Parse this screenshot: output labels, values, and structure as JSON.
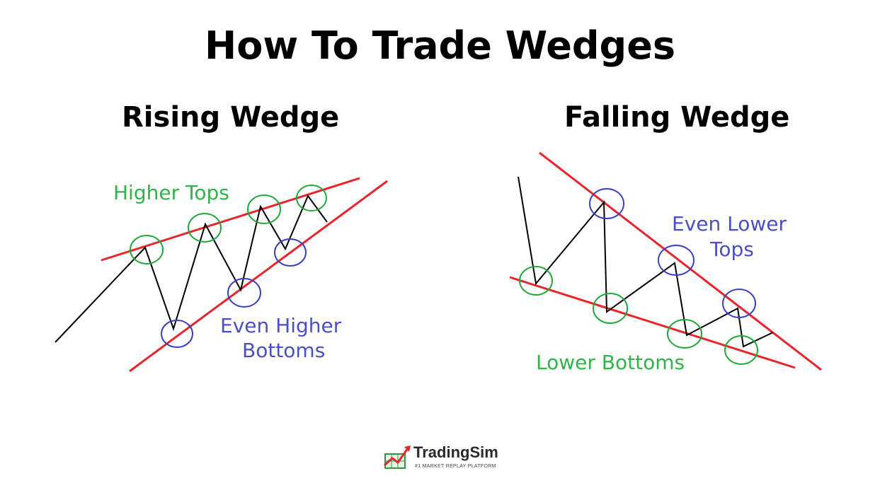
{
  "title": "How To Trade Wedges",
  "rising": {
    "title": "Rising Wedge",
    "label_tops": "Higher Tops",
    "label_bottoms_line1": "Even Higher",
    "label_bottoms_line2": "Bottoms"
  },
  "falling": {
    "title": "Falling Wedge",
    "label_tops_line1": "Even Lower",
    "label_tops_line2": "Tops",
    "label_bottoms": "Lower Bottoms"
  },
  "logo": {
    "name": "TradingSim",
    "tagline": "#1 MARKET REPLAY PLATFORM"
  },
  "colors": {
    "trendline": "#e8252b",
    "price": "#000000",
    "green_circle": "#22a83a",
    "blue_circle": "#3a3fc4",
    "green_text": "#2fb34a",
    "blue_text": "#4a4fc8"
  }
}
